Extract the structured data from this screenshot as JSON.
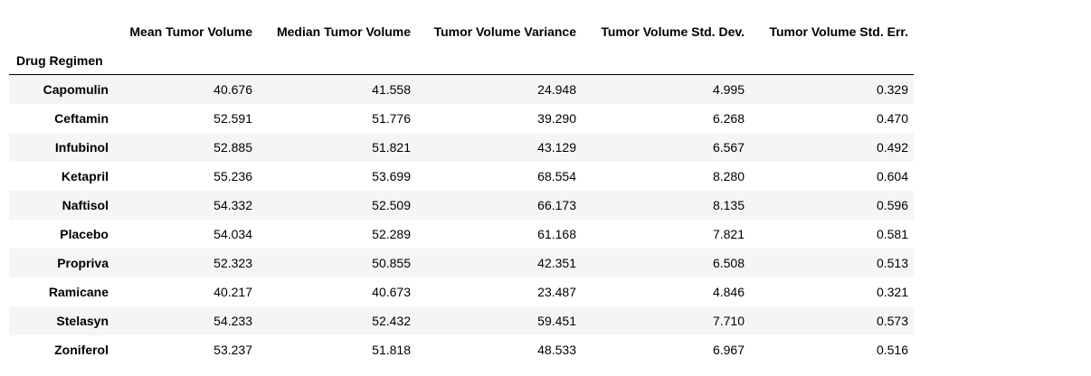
{
  "table": {
    "index_name": "Drug Regimen",
    "columns": [
      "Mean Tumor Volume",
      "Median Tumor Volume",
      "Tumor Volume Variance",
      "Tumor Volume Std. Dev.",
      "Tumor Volume Std. Err."
    ],
    "rows": [
      {
        "name": "Capomulin",
        "values": [
          "40.676",
          "41.558",
          "24.948",
          "4.995",
          "0.329"
        ]
      },
      {
        "name": "Ceftamin",
        "values": [
          "52.591",
          "51.776",
          "39.290",
          "6.268",
          "0.470"
        ]
      },
      {
        "name": "Infubinol",
        "values": [
          "52.885",
          "51.821",
          "43.129",
          "6.567",
          "0.492"
        ]
      },
      {
        "name": "Ketapril",
        "values": [
          "55.236",
          "53.699",
          "68.554",
          "8.280",
          "0.604"
        ]
      },
      {
        "name": "Naftisol",
        "values": [
          "54.332",
          "52.509",
          "66.173",
          "8.135",
          "0.596"
        ]
      },
      {
        "name": "Placebo",
        "values": [
          "54.034",
          "52.289",
          "61.168",
          "7.821",
          "0.581"
        ]
      },
      {
        "name": "Propriva",
        "values": [
          "52.323",
          "50.855",
          "42.351",
          "6.508",
          "0.513"
        ]
      },
      {
        "name": "Ramicane",
        "values": [
          "40.217",
          "40.673",
          "23.487",
          "4.846",
          "0.321"
        ]
      },
      {
        "name": "Stelasyn",
        "values": [
          "54.233",
          "52.432",
          "59.451",
          "7.710",
          "0.573"
        ]
      },
      {
        "name": "Zoniferol",
        "values": [
          "53.237",
          "51.818",
          "48.533",
          "6.967",
          "0.516"
        ]
      }
    ]
  }
}
